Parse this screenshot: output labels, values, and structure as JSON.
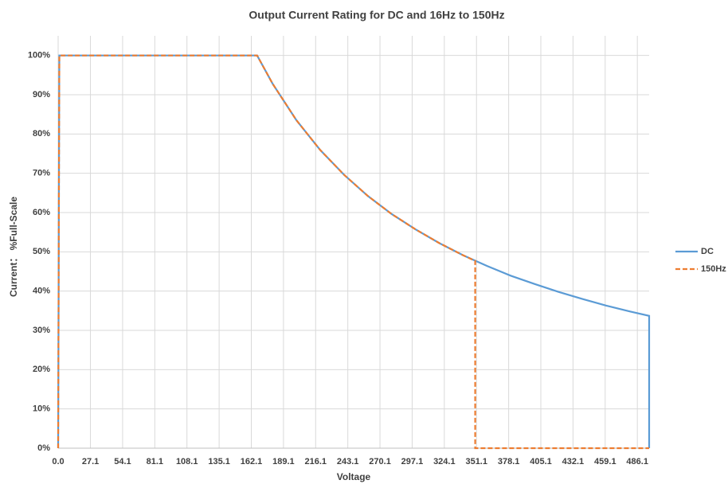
{
  "chart_data": {
    "type": "line",
    "title": "Output Current Rating for DC and 16Hz to 150Hz",
    "x_label": "Voltage",
    "y_label": "Current： %Full-Scale",
    "xlim": [
      0,
      496
    ],
    "ylim": [
      0,
      105
    ],
    "xticks": [
      {
        "value": 0,
        "label": "0.0"
      },
      27.1,
      54.1,
      81.1,
      108.1,
      135.1,
      162.1,
      189.1,
      216.1,
      243.1,
      270.1,
      297.1,
      324.1,
      351.1,
      378.1,
      405.1,
      432.1,
      459.1,
      486.1
    ],
    "yticks": [
      {
        "value": 0,
        "label": "0%"
      },
      {
        "value": 10,
        "label": "10%"
      },
      {
        "value": 20,
        "label": "20%"
      },
      {
        "value": 30,
        "label": "30%"
      },
      {
        "value": 40,
        "label": "40%"
      },
      {
        "value": 50,
        "label": "50%"
      },
      {
        "value": 60,
        "label": "60%"
      },
      {
        "value": 70,
        "label": "70%"
      },
      {
        "value": 80,
        "label": "80%"
      },
      {
        "value": 90,
        "label": "90%"
      },
      {
        "value": 100,
        "label": "100%"
      }
    ],
    "grid": true,
    "legend": "right",
    "series": [
      {
        "name": "DC",
        "color": "#5b9bd5",
        "dash": false,
        "x": [
          0,
          1,
          167,
          180,
          200,
          220,
          240,
          260,
          280,
          300,
          320,
          340,
          360,
          380,
          400,
          420,
          440,
          460,
          480,
          496,
          496
        ],
        "values": [
          0,
          100,
          100,
          92.8,
          83.5,
          75.9,
          69.6,
          64.2,
          59.6,
          55.7,
          52.2,
          49.1,
          46.4,
          43.9,
          41.8,
          39.8,
          38.0,
          36.3,
          34.8,
          33.7,
          0
        ]
      },
      {
        "name": "150Hz",
        "color": "#ed7d31",
        "dash": true,
        "x": [
          0,
          1,
          167,
          180,
          200,
          220,
          240,
          260,
          280,
          300,
          320,
          340,
          350,
          350,
          496
        ],
        "values": [
          0,
          100,
          100,
          92.8,
          83.5,
          75.9,
          69.6,
          64.2,
          59.6,
          55.7,
          52.2,
          49.1,
          47.7,
          0,
          0
        ]
      }
    ]
  }
}
